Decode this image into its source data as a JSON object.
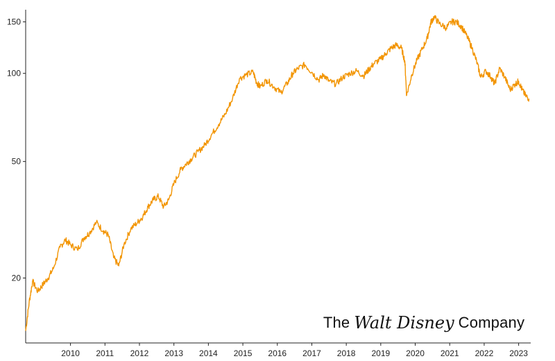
{
  "chart_data": {
    "type": "line",
    "title": "",
    "xlabel": "",
    "ylabel": "",
    "yscale": "log",
    "ylim": [
      12,
      165
    ],
    "xlim": [
      2009.2,
      2023.85
    ],
    "y_ticks": [
      20,
      50,
      100,
      150
    ],
    "x_ticks": [
      "2010",
      "2011",
      "2012",
      "2013",
      "2014",
      "2015",
      "2016",
      "2017",
      "2018",
      "2019",
      "2020",
      "2021",
      "2022",
      "2023"
    ],
    "grid": false,
    "legend": "none",
    "series": [
      {
        "color": "#f29400",
        "x": [
          2009.2,
          2009.3,
          2009.4,
          2009.55,
          2009.7,
          2009.85,
          2010.0,
          2010.2,
          2010.35,
          2010.5,
          2010.7,
          2010.9,
          2011.05,
          2011.25,
          2011.45,
          2011.6,
          2011.75,
          2011.9,
          2012.05,
          2012.25,
          2012.45,
          2012.6,
          2012.75,
          2012.9,
          2013.05,
          2013.2,
          2013.35,
          2013.5,
          2013.7,
          2013.85,
          2014.0,
          2014.2,
          2014.4,
          2014.6,
          2014.8,
          2015.0,
          2015.2,
          2015.4,
          2015.6,
          2015.8,
          2015.9,
          2016.0,
          2016.2,
          2016.4,
          2016.6,
          2016.8,
          2016.95,
          2017.1,
          2017.3,
          2017.5,
          2017.7,
          2017.85,
          2018.0,
          2018.2,
          2018.4,
          2018.6,
          2018.8,
          2019.0,
          2019.15,
          2019.3,
          2019.5,
          2019.65,
          2019.8,
          2019.95,
          2020.1,
          2020.2,
          2020.25,
          2020.4,
          2020.55,
          2020.7,
          2020.85,
          2020.95,
          2021.05,
          2021.2,
          2021.4,
          2021.55,
          2021.7,
          2021.85,
          2022.0,
          2022.15,
          2022.3,
          2022.4,
          2022.55,
          2022.7,
          2022.8,
          2022.95,
          2023.1,
          2023.25,
          2023.4,
          2023.5,
          2023.6,
          2023.7,
          2023.8
        ],
        "values": [
          13.2,
          16.5,
          19.5,
          18.0,
          19.0,
          20.0,
          21.5,
          25.5,
          27.0,
          26.0,
          25.0,
          27.5,
          28.5,
          31.0,
          29.0,
          28.0,
          23.5,
          22.0,
          26.0,
          29.5,
          31.0,
          32.5,
          35.0,
          37.0,
          38.0,
          35.0,
          37.0,
          42.0,
          47.0,
          49.0,
          51.0,
          54.0,
          57.0,
          62.0,
          67.0,
          73.0,
          82.0,
          96.0,
          99.0,
          101.0,
          93.0,
          90.0,
          95.0,
          90.0,
          86.0,
          93.0,
          100.0,
          104.0,
          107.0,
          101.0,
          95.0,
          99.0,
          94.0,
          92.0,
          97.0,
          100.0,
          102.0,
          98.0,
          103.0,
          108.0,
          112.0,
          117.0,
          122.0,
          125.0,
          122.0,
          110.0,
          84.0,
          99.0,
          111.0,
          121.0,
          132.0,
          149.0,
          156.0,
          148.0,
          143.0,
          150.0,
          150.0,
          144.0,
          134.0,
          122.0,
          108.0,
          97.0,
          102.0,
          97.0,
          92.0,
          104.0,
          97.0,
          88.0,
          92.0,
          94.0,
          88.0,
          84.0,
          82.0
        ]
      }
    ]
  },
  "logo": {
    "text_before": "The",
    "script_text": "Walt Disney",
    "text_after": "Company"
  }
}
